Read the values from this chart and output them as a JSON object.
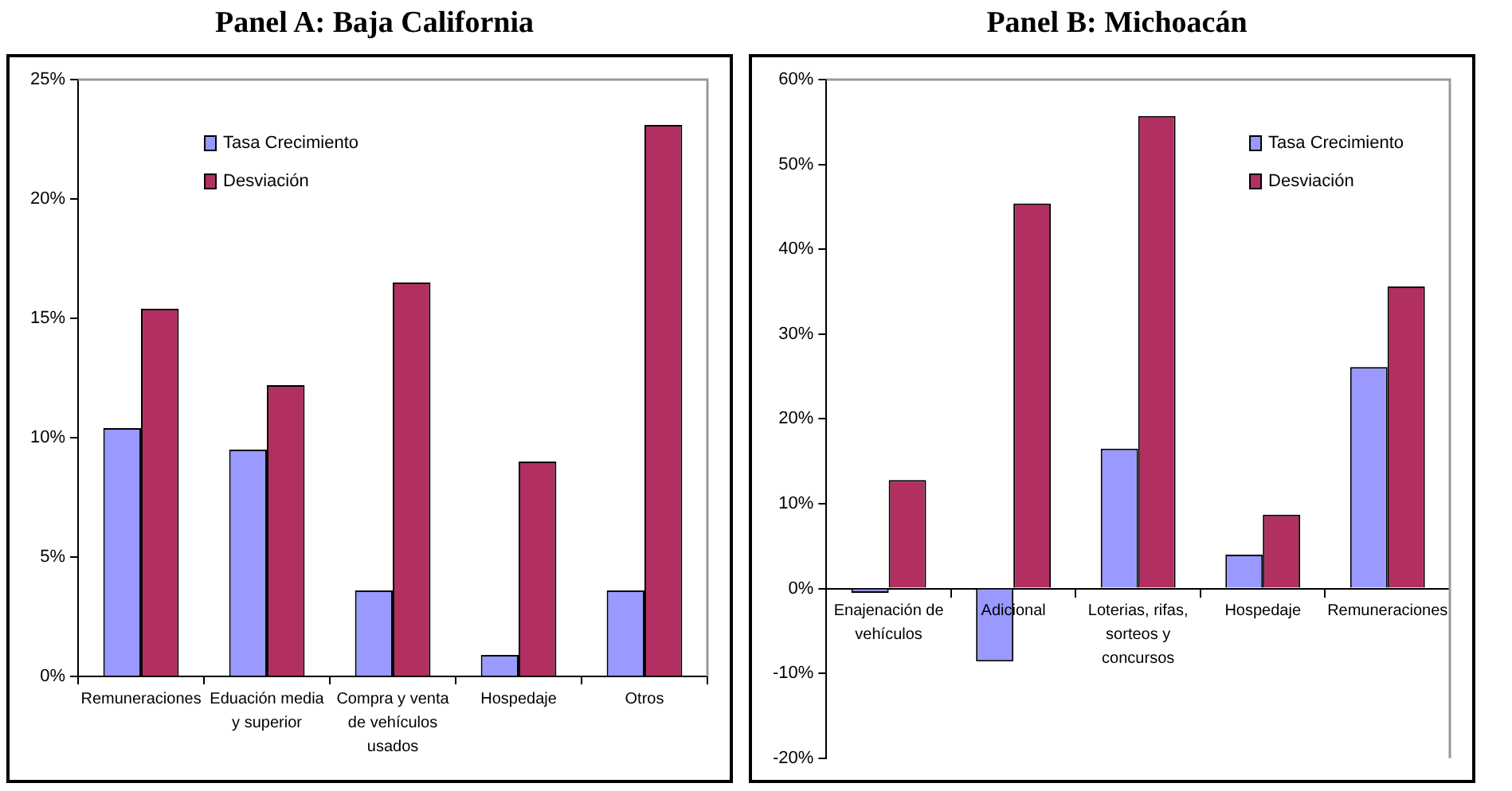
{
  "chart_data": [
    {
      "type": "bar",
      "title": "Panel A: Baja California",
      "categories": [
        "Remuneraciones",
        "Eduación media y superior",
        "Compra y venta de vehículos usados",
        "Hospedaje",
        "Otros"
      ],
      "series": [
        {
          "name": "Tasa Crecimiento",
          "color": "#9999ff",
          "values": [
            10.4,
            9.5,
            3.6,
            0.9,
            3.6
          ]
        },
        {
          "name": "Desviación",
          "color": "#b22f62",
          "values": [
            15.4,
            12.2,
            16.5,
            9.0,
            23.1
          ]
        }
      ],
      "ylim": [
        0,
        25
      ],
      "yticks": [
        {
          "value": 0,
          "label": "0%"
        },
        {
          "value": 5,
          "label": "5%"
        },
        {
          "value": 10,
          "label": "10%"
        },
        {
          "value": 15,
          "label": "15%"
        },
        {
          "value": 20,
          "label": "20%"
        },
        {
          "value": 25,
          "label": "25%"
        }
      ],
      "grid": false,
      "legend": "top left"
    },
    {
      "type": "bar",
      "title": "Panel B: Michoacán",
      "categories": [
        "Enajenación de vehículos",
        "Adicional",
        "Loterias, rifas, sorteos y concursos",
        "Hospedaje",
        "Remuneraciones"
      ],
      "series": [
        {
          "name": "Tasa Crecimiento",
          "color": "#9999ff",
          "values": [
            -0.5,
            -8.6,
            16.5,
            4.0,
            26.1
          ]
        },
        {
          "name": "Desviación",
          "color": "#b22f62",
          "values": [
            12.8,
            45.4,
            55.7,
            8.7,
            35.6
          ]
        }
      ],
      "ylim": [
        -20,
        60
      ],
      "yticks": [
        {
          "value": -20,
          "label": "-20%"
        },
        {
          "value": -10,
          "label": "-10%"
        },
        {
          "value": 0,
          "label": "0%"
        },
        {
          "value": 10,
          "label": "10%"
        },
        {
          "value": 20,
          "label": "20%"
        },
        {
          "value": 30,
          "label": "30%"
        },
        {
          "value": 40,
          "label": "40%"
        },
        {
          "value": 50,
          "label": "50%"
        },
        {
          "value": 60,
          "label": "60%"
        }
      ],
      "grid": false,
      "legend": "top right"
    }
  ]
}
